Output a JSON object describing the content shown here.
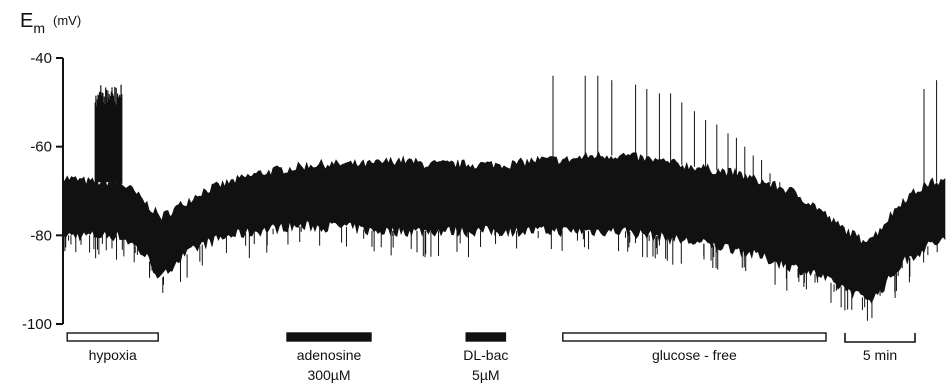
{
  "chart_data": {
    "type": "line",
    "title": "",
    "ylabel": {
      "symbol": "E",
      "subscript": "m",
      "unit": "(mV)"
    },
    "xlabel": "",
    "ylim": [
      -100,
      -40
    ],
    "yticks": [
      "-40",
      "-60",
      "-80",
      "-100"
    ],
    "ytick_values": [
      -40,
      -60,
      -80,
      -100
    ],
    "xlim_min": [
      0,
      63
    ],
    "grid": false,
    "series": [
      {
        "x_min": [
          0,
          2,
          4,
          5,
          6,
          7,
          8,
          9,
          10,
          12,
          14,
          16,
          18,
          20,
          22,
          24,
          26,
          28,
          30,
          32,
          34,
          36,
          38,
          40,
          42,
          44,
          46,
          48,
          50,
          52,
          54,
          55,
          56,
          57,
          58,
          59,
          60,
          61,
          62,
          63
        ],
        "y_upper_mV": [
          -67,
          -68,
          -68,
          -70,
          -73,
          -76,
          -74,
          -72,
          -70,
          -68,
          -66,
          -65,
          -64,
          -64,
          -64,
          -63,
          -64,
          -64,
          -64,
          -64,
          -63,
          -63,
          -62,
          -62,
          -63,
          -64,
          -65,
          -66,
          -68,
          -70,
          -74,
          -77,
          -79,
          -81,
          -80,
          -76,
          -72,
          -70,
          -68,
          -68
        ],
        "y_lower_mV": [
          -80,
          -80,
          -80,
          -82,
          -85,
          -90,
          -86,
          -84,
          -82,
          -80,
          -79,
          -78,
          -78,
          -78,
          -79,
          -79,
          -79,
          -79,
          -79,
          -79,
          -79,
          -79,
          -79,
          -79,
          -80,
          -81,
          -82,
          -83,
          -85,
          -87,
          -89,
          -91,
          -92,
          -94,
          -94,
          -90,
          -86,
          -84,
          -82,
          -81
        ]
      }
    ],
    "bursts": [
      {
        "x_min": [
          2.3,
          4.2
        ],
        "y_top_mV": -46
      }
    ],
    "spikes": [
      {
        "x_min": 35.0,
        "top_mV": -44
      },
      {
        "x_min": 37.3,
        "top_mV": -44
      },
      {
        "x_min": 38.2,
        "top_mV": -44
      },
      {
        "x_min": 39.2,
        "top_mV": -45
      },
      {
        "x_min": 40.9,
        "top_mV": -46
      },
      {
        "x_min": 41.7,
        "top_mV": -47
      },
      {
        "x_min": 42.6,
        "top_mV": -48
      },
      {
        "x_min": 43.4,
        "top_mV": -48
      },
      {
        "x_min": 44.2,
        "top_mV": -50
      },
      {
        "x_min": 45.1,
        "top_mV": -52
      },
      {
        "x_min": 45.9,
        "top_mV": -54
      },
      {
        "x_min": 46.7,
        "top_mV": -55
      },
      {
        "x_min": 47.5,
        "top_mV": -57
      },
      {
        "x_min": 48.1,
        "top_mV": -58
      },
      {
        "x_min": 48.7,
        "top_mV": -60
      },
      {
        "x_min": 49.3,
        "top_mV": -62
      },
      {
        "x_min": 49.9,
        "top_mV": -63
      },
      {
        "x_min": 50.5,
        "top_mV": -66
      },
      {
        "x_min": 51.2,
        "top_mV": -68
      },
      {
        "x_min": 61.5,
        "top_mV": -47
      },
      {
        "x_min": 62.4,
        "top_mV": -45
      }
    ],
    "annotations": [
      {
        "label": "hypoxia",
        "line2": "",
        "x_min": [
          0.3,
          6.8
        ],
        "style": "open"
      },
      {
        "label": "adenosine",
        "line2": "300µM",
        "x_min": [
          16.0,
          22.0
        ],
        "style": "filled"
      },
      {
        "label": "DL-bac",
        "line2": "5µM",
        "x_min": [
          28.8,
          31.6
        ],
        "style": "filled"
      },
      {
        "label": "glucose - free",
        "line2": "",
        "x_min": [
          35.7,
          54.5
        ],
        "style": "open"
      }
    ],
    "scale_bar": {
      "label": "5 min",
      "minutes": 5
    }
  }
}
